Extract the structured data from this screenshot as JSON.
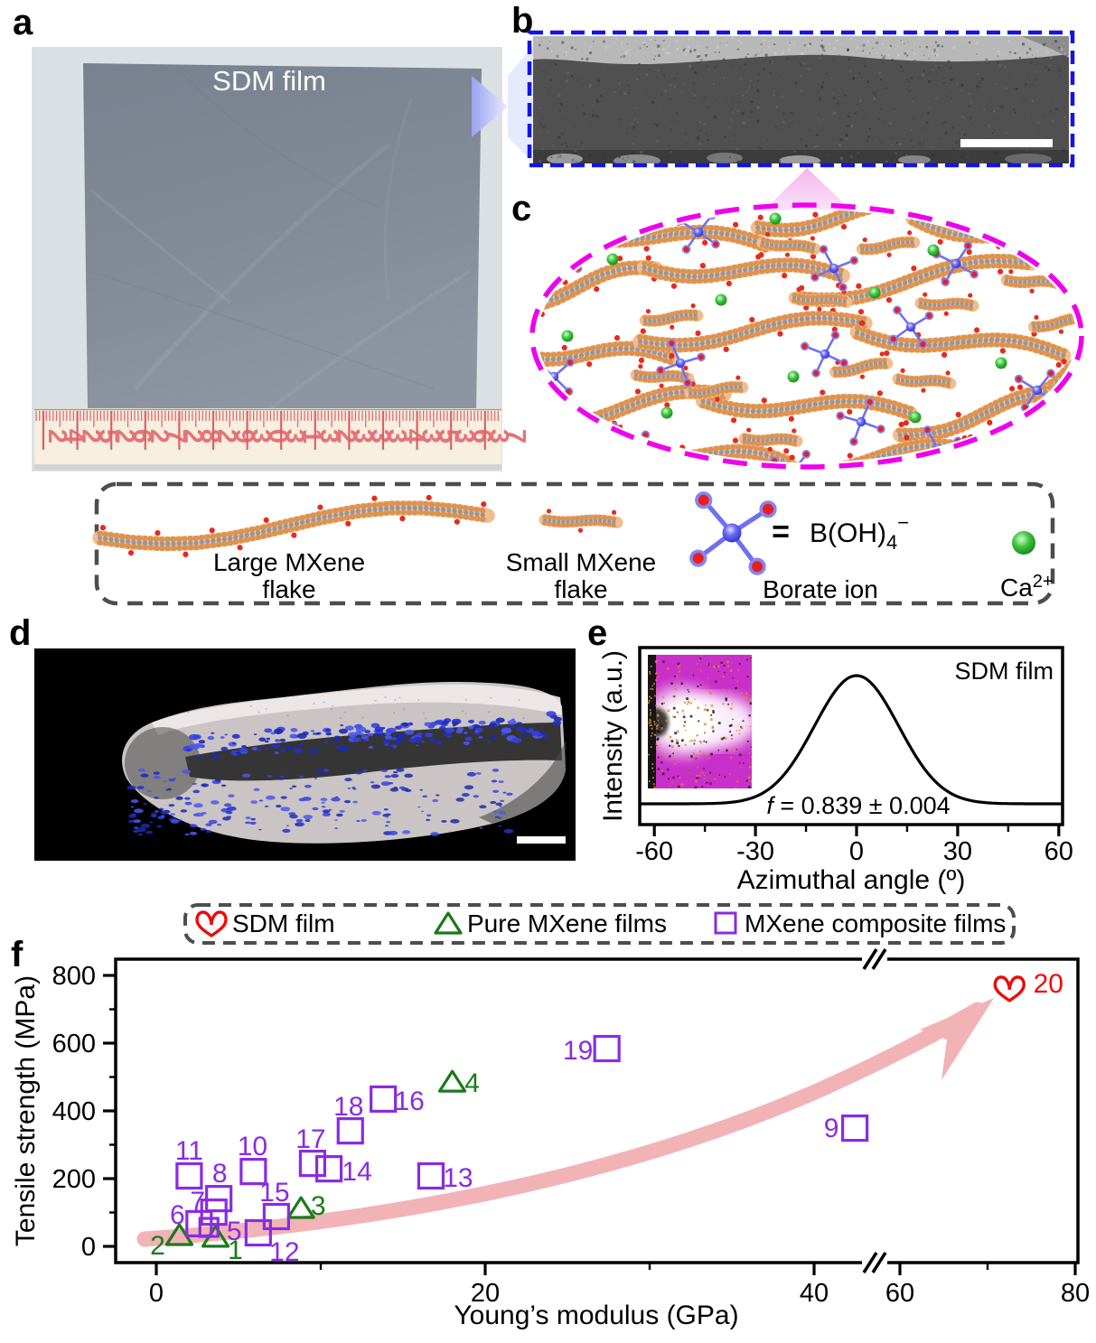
{
  "panel_labels": {
    "a": "a",
    "b": "b",
    "c": "c",
    "d": "d",
    "e": "e",
    "f": "f"
  },
  "colors": {
    "purple": "#8A2BE2",
    "green": "#1A7A1A",
    "red": "#EE0A0A",
    "magenta_dash": "#EE00EE",
    "blue_dash": "#1414E6",
    "arrow_pink": "#F2B3B6",
    "flake_orange": "#F2BD8E",
    "bead_orange": "#DD9350",
    "borate_blue": "#6F6FF2",
    "ca_green": "#2FB52F"
  },
  "panel_a": {
    "film_label": "SDM film",
    "ruler_numbers": [
      "24",
      "25",
      "26",
      "27",
      "28",
      "29",
      "30",
      "31",
      "32",
      "33",
      "34",
      "35",
      "36",
      "37"
    ]
  },
  "legend_box": {
    "large_flake_line1": "Large MXene",
    "large_flake_line2": "flake",
    "small_flake_line1": "Small MXene",
    "small_flake_line2": "flake",
    "equals": "=",
    "formula_base": "B(OH)",
    "formula_sub": "4",
    "formula_sup": "−",
    "borate_label": "Borate ion",
    "ca_base": "Ca",
    "ca_sup": "2+"
  },
  "panel_e": {
    "title": "SDM film",
    "xlabel": "Azimuthal angle (º)",
    "ylabel": "Intensity (a.u.)",
    "f_symbol": "f",
    "f_text": " = 0.839 ± 0.004",
    "xtick_labels": [
      "-60",
      "-30",
      "0",
      "30",
      "60"
    ]
  },
  "panel_f": {
    "legend": [
      {
        "marker": "heart",
        "label": "SDM film"
      },
      {
        "marker": "triangle",
        "label": "Pure MXene films"
      },
      {
        "marker": "square",
        "label": "MXene composite films"
      }
    ],
    "xlabel": "Young’s modulus (GPa)",
    "ylabel": "Tensile strength (MPa)",
    "xtick_labels": [
      "0",
      "20",
      "40",
      "60",
      "80"
    ],
    "ytick_labels": [
      "0",
      "200",
      "400",
      "600",
      "800"
    ]
  },
  "chart_data": [
    {
      "id": "panel_e_orientation",
      "type": "line",
      "title": "SDM film",
      "xlabel": "Azimuthal angle (º)",
      "ylabel": "Intensity (a.u.)",
      "xticks": [
        -60,
        -30,
        0,
        30,
        60
      ],
      "xticks_minor": [
        -45,
        -15,
        15,
        45
      ],
      "xlim": [
        -64,
        61
      ],
      "grid": false,
      "curve": {
        "shape": "gaussian",
        "center_deg": 0,
        "sigma_deg": 12.5,
        "peak": 1.0,
        "baseline": 0.0
      },
      "annotation": "f = 0.839 ± 0.004",
      "inset": "2D WAXS pattern"
    },
    {
      "id": "panel_f_scatter",
      "type": "scatter",
      "xlabel": "Young’s modulus (GPa)",
      "ylabel": "Tensile strength (MPa)",
      "xticks": [
        0,
        20,
        40,
        60,
        80
      ],
      "xticks_minor": [
        10,
        30,
        70
      ],
      "yticks": [
        0,
        200,
        400,
        600,
        800
      ],
      "yticks_minor": [
        100,
        300,
        500,
        700
      ],
      "xlim": [
        -2.5,
        80.3
      ],
      "ylim": [
        -48,
        848
      ],
      "axis_break_x": [
        42,
        58
      ],
      "grid": false,
      "series": [
        {
          "name": "SDM film",
          "marker": "heart",
          "color": "#EE0A0A",
          "points": [
            {
              "id": "20",
              "x": 72.5,
              "y": 763,
              "lx": 43,
              "ly": -5
            }
          ]
        },
        {
          "name": "Pure MXene films",
          "marker": "triangle",
          "color": "#1A7A1A",
          "points": [
            {
              "id": "1",
              "x": 3.6,
              "y": 27,
              "lx": 22,
              "ly": 14
            },
            {
              "id": "2",
              "x": 1.4,
              "y": 32,
              "lx": -24,
              "ly": 11
            },
            {
              "id": "3",
              "x": 8.8,
              "y": 112,
              "lx": 19,
              "ly": -3
            },
            {
              "id": "4",
              "x": 18.0,
              "y": 485,
              "lx": 22,
              "ly": 1
            }
          ]
        },
        {
          "name": "MXene composite films",
          "marker": "square",
          "color": "#8A2BE2",
          "points": [
            {
              "id": "5",
              "x": 3.2,
              "y": 56,
              "lx": 28,
              "ly": 4,
              "size": 20
            },
            {
              "id": "6",
              "x": 2.6,
              "y": 67,
              "lx": -24,
              "ly": -10
            },
            {
              "id": "7",
              "x": 3.5,
              "y": 101,
              "lx": -18,
              "ly": -12
            },
            {
              "id": "8",
              "x": 3.8,
              "y": 141,
              "lx": 1,
              "ly": -28
            },
            {
              "id": "9",
              "x": 49.5,
              "y": 349,
              "lx": -26,
              "ly": 0
            },
            {
              "id": "10",
              "x": 5.9,
              "y": 221,
              "lx": -1,
              "ly": -28
            },
            {
              "id": "11",
              "x": 2.0,
              "y": 208,
              "lx": 0,
              "ly": -28
            },
            {
              "id": "12",
              "x": 6.2,
              "y": 40,
              "lx": 29,
              "ly": 21
            },
            {
              "id": "13",
              "x": 16.7,
              "y": 208,
              "lx": 30,
              "ly": 2
            },
            {
              "id": "14",
              "x": 10.5,
              "y": 229,
              "lx": 31,
              "ly": 3
            },
            {
              "id": "15",
              "x": 7.3,
              "y": 88,
              "lx": -2,
              "ly": -27
            },
            {
              "id": "16",
              "x": 13.8,
              "y": 435,
              "lx": 29,
              "ly": 2
            },
            {
              "id": "17",
              "x": 9.5,
              "y": 245,
              "lx": -2,
              "ly": -27
            },
            {
              "id": "18",
              "x": 11.8,
              "y": 341,
              "lx": -2,
              "ly": -27
            },
            {
              "id": "19",
              "x": 27.4,
              "y": 584,
              "lx": -32,
              "ly": 2
            }
          ]
        }
      ]
    }
  ]
}
